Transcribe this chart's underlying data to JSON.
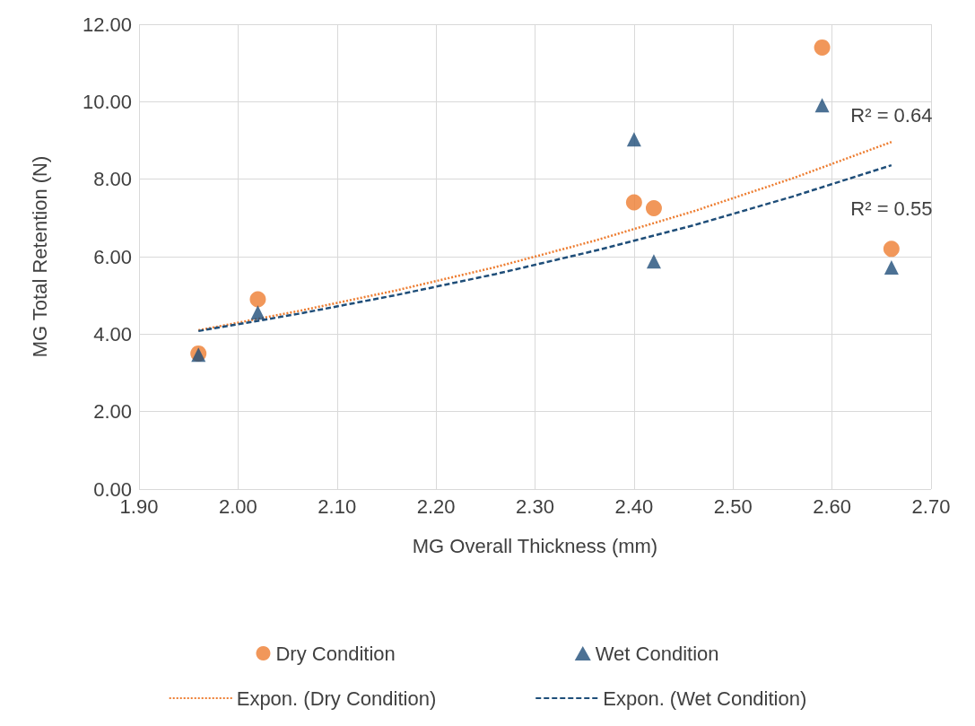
{
  "chart_data": {
    "type": "scatter",
    "xlabel": "MG Overall Thickness (mm)",
    "ylabel": "MG Total Retention (N)",
    "xlim": [
      1.9,
      2.7
    ],
    "xticks": [
      {
        "value": 1.9,
        "label": "1.90"
      },
      {
        "value": 2.0,
        "label": "2.00"
      },
      {
        "value": 2.1,
        "label": "2.10"
      },
      {
        "value": 2.2,
        "label": "2.20"
      },
      {
        "value": 2.3,
        "label": "2.30"
      },
      {
        "value": 2.4,
        "label": "2.40"
      },
      {
        "value": 2.5,
        "label": "2.50"
      },
      {
        "value": 2.6,
        "label": "2.60"
      },
      {
        "value": 2.7,
        "label": "2.70"
      }
    ],
    "ylim": [
      0,
      12
    ],
    "yticks": [
      {
        "value": 0,
        "label": "0.00"
      },
      {
        "value": 2,
        "label": "2.00"
      },
      {
        "value": 4,
        "label": "4.00"
      },
      {
        "value": 6,
        "label": "6.00"
      },
      {
        "value": 8,
        "label": "8.00"
      },
      {
        "value": 10,
        "label": "10.00"
      },
      {
        "value": 12,
        "label": "12.00"
      }
    ],
    "grid": true,
    "legend": "bottom",
    "series": [
      {
        "name": "Dry Condition",
        "marker": "circle",
        "color": "#ed7d31",
        "x": [
          1.96,
          2.02,
          2.4,
          2.42,
          2.59,
          2.66
        ],
        "values": [
          3.5,
          4.9,
          7.4,
          7.25,
          11.4,
          6.2
        ]
      },
      {
        "name": "Wet Condition",
        "marker": "triangle",
        "color": "#1f4e79",
        "x": [
          1.96,
          2.02,
          2.4,
          2.42,
          2.59,
          2.66
        ],
        "values": [
          3.47,
          4.56,
          9.03,
          5.88,
          9.91,
          5.72
        ]
      },
      {
        "name": "Expon. (Dry Condition)",
        "type": "line",
        "line_style": "dotted",
        "color": "#ed7d31",
        "x": [
          1.96,
          2.06,
          2.16,
          2.26,
          2.36,
          2.46,
          2.56,
          2.66
        ],
        "values": [
          4.1,
          4.59,
          5.13,
          5.73,
          6.41,
          7.17,
          8.02,
          8.96
        ]
      },
      {
        "name": "Expon. (Wet Condition)",
        "type": "line",
        "line_style": "dashed",
        "color": "#1f4e79",
        "x": [
          1.96,
          2.06,
          2.16,
          2.26,
          2.36,
          2.46,
          2.56,
          2.66
        ],
        "values": [
          4.08,
          4.52,
          5.01,
          5.55,
          6.15,
          6.81,
          7.55,
          8.36
        ]
      }
    ],
    "annotations": [
      "R² = 0.64",
      "R² = 0.55"
    ]
  }
}
